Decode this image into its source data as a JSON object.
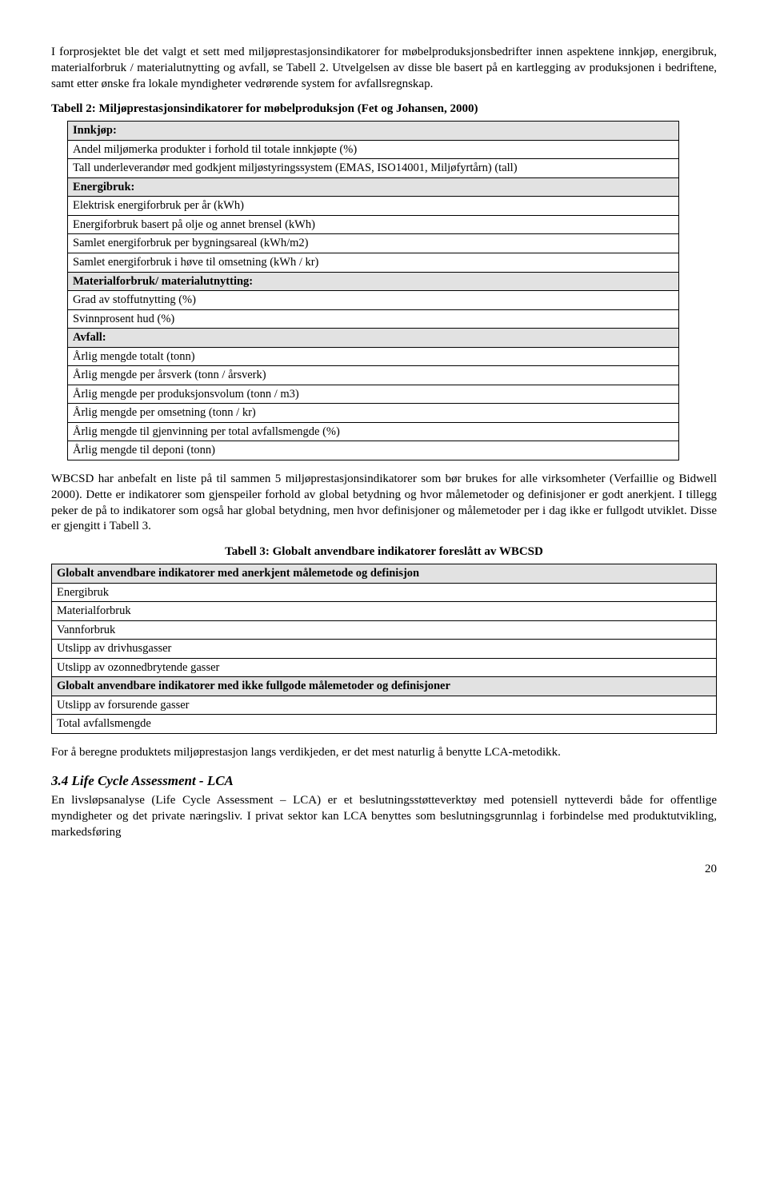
{
  "para1": "I forprosjektet ble det valgt et sett med miljøprestasjonsindikatorer for møbelproduksjonsbedrifter innen aspektene innkjøp, energibruk, materialforbruk / materialutnytting og avfall, se Tabell 2. Utvelgelsen av disse ble basert på en kartlegging av produksjonen i bedriftene, samt etter ønske fra lokale myndigheter vedrørende system for avfallsregnskap.",
  "table2": {
    "caption": "Tabell 2: Miljøprestasjonsindikatorer for møbelproduksjon (Fet og Johansen, 2000)",
    "rows": [
      {
        "shaded": true,
        "bold": true,
        "text": "Innkjøp:"
      },
      {
        "shaded": false,
        "bold": false,
        "text": "Andel miljømerka produkter i forhold til totale innkjøpte (%)"
      },
      {
        "shaded": false,
        "bold": false,
        "text": "Tall underleverandør med godkjent miljøstyringssystem (EMAS, ISO14001, Miljøfyrtårn) (tall)"
      },
      {
        "shaded": true,
        "bold": true,
        "text": "Energibruk:"
      },
      {
        "shaded": false,
        "bold": false,
        "text": "Elektrisk energiforbruk per år (kWh)"
      },
      {
        "shaded": false,
        "bold": false,
        "text": "Energiforbruk basert på olje og annet brensel (kWh)"
      },
      {
        "shaded": false,
        "bold": false,
        "text": "Samlet energiforbruk per bygningsareal (kWh/m2)"
      },
      {
        "shaded": false,
        "bold": false,
        "text": "Samlet energiforbruk i høve til omsetning (kWh / kr)"
      },
      {
        "shaded": true,
        "bold": true,
        "text": "Materialforbruk/ materialutnytting:"
      },
      {
        "shaded": false,
        "bold": false,
        "text": "Grad av stoffutnytting (%)"
      },
      {
        "shaded": false,
        "bold": false,
        "text": "Svinnprosent hud (%)"
      },
      {
        "shaded": true,
        "bold": true,
        "text": "Avfall:"
      },
      {
        "shaded": false,
        "bold": false,
        "text": "Årlig mengde totalt (tonn)"
      },
      {
        "shaded": false,
        "bold": false,
        "text": "Årlig mengde per årsverk (tonn / årsverk)"
      },
      {
        "shaded": false,
        "bold": false,
        "text": "Årlig mengde per produksjonsvolum (tonn / m3)"
      },
      {
        "shaded": false,
        "bold": false,
        "text": "Årlig mengde per omsetning (tonn / kr)"
      },
      {
        "shaded": false,
        "bold": false,
        "text": "Årlig mengde til gjenvinning per total avfallsmengde (%)"
      },
      {
        "shaded": false,
        "bold": false,
        "text": "Årlig mengde til deponi (tonn)"
      }
    ]
  },
  "para2": "WBCSD har anbefalt en liste på til sammen 5 miljøprestasjonsindikatorer som bør brukes for alle virksomheter (Verfaillie og Bidwell 2000). Dette er indikatorer som gjenspeiler forhold av global betydning og hvor målemetoder og definisjoner er godt anerkjent. I tillegg peker de på to indikatorer som også har global betydning, men hvor definisjoner og målemetoder per i dag ikke er fullgodt utviklet. Disse er gjengitt i Tabell 3.",
  "table3": {
    "caption": "Tabell 3: Globalt anvendbare indikatorer foreslått av WBCSD",
    "rows": [
      {
        "shaded": true,
        "bold": true,
        "text": "Globalt anvendbare indikatorer med anerkjent målemetode og definisjon"
      },
      {
        "shaded": false,
        "bold": false,
        "text": "Energibruk"
      },
      {
        "shaded": false,
        "bold": false,
        "text": "Materialforbruk"
      },
      {
        "shaded": false,
        "bold": false,
        "text": "Vannforbruk"
      },
      {
        "shaded": false,
        "bold": false,
        "text": "Utslipp av drivhusgasser"
      },
      {
        "shaded": false,
        "bold": false,
        "text": "Utslipp av ozonnedbrytende gasser"
      },
      {
        "shaded": true,
        "bold": true,
        "text": "Globalt anvendbare indikatorer med ikke fullgode målemetoder og definisjoner"
      },
      {
        "shaded": false,
        "bold": false,
        "text": "Utslipp av forsurende gasser"
      },
      {
        "shaded": false,
        "bold": false,
        "text": "Total avfallsmengde"
      }
    ]
  },
  "para3": "For å beregne produktets miljøprestasjon langs verdikjeden, er det mest naturlig å benytte LCA-metodikk.",
  "section": {
    "heading": "3.4  Life Cycle Assessment - LCA",
    "body": "En livsløpsanalyse (Life Cycle Assessment – LCA) er et beslutningsstøtteverktøy med potensiell nytteverdi både for offentlige myndigheter og det private næringsliv. I privat sektor kan LCA benyttes som beslutningsgrunnlag i forbindelse med produktutvikling, markedsføring"
  },
  "pageno": "20"
}
